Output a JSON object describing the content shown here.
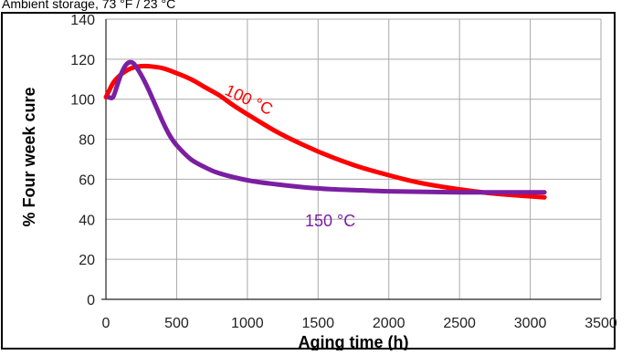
{
  "header": {
    "text": "Ambient storage, 73 °F / 23 °C"
  },
  "chart_data": {
    "type": "line",
    "title": "",
    "xlabel": "Aging time (h)",
    "ylabel": "% Four week cure",
    "xlim": [
      0,
      3500
    ],
    "ylim": [
      0,
      140
    ],
    "x_ticks": [
      0,
      500,
      1000,
      1500,
      2000,
      2500,
      3000,
      3500
    ],
    "y_ticks": [
      0,
      20,
      40,
      60,
      80,
      100,
      120,
      140
    ],
    "grid": true,
    "series": [
      {
        "name": "100 °C",
        "color": "#ff0000",
        "x": [
          0,
          50,
          100,
          150,
          200,
          250,
          300,
          400,
          500,
          600,
          700,
          800,
          900,
          1000,
          1200,
          1400,
          1600,
          1800,
          2000,
          2200,
          2400,
          2600,
          2800,
          3000,
          3100
        ],
        "y": [
          101,
          108,
          112,
          114.5,
          116,
          116.5,
          116.5,
          115.5,
          113,
          110,
          106,
          102,
          97,
          92.5,
          84,
          77,
          71,
          66,
          62,
          58.5,
          56,
          54,
          52.5,
          51.5,
          51
        ]
      },
      {
        "name": "150 °C",
        "color": "#7b1fa2",
        "x": [
          20,
          50,
          80,
          110,
          140,
          170,
          200,
          250,
          300,
          350,
          400,
          450,
          500,
          600,
          700,
          800,
          1000,
          1200,
          1400,
          1600,
          1800,
          2000,
          2500,
          3000,
          3100
        ],
        "y": [
          101,
          101,
          107,
          113,
          117,
          118.5,
          117.5,
          112,
          105,
          97,
          89,
          82,
          77,
          70,
          66,
          63,
          59.5,
          57.5,
          56,
          55,
          54.5,
          54,
          53.5,
          53.5,
          53.5
        ]
      }
    ]
  }
}
